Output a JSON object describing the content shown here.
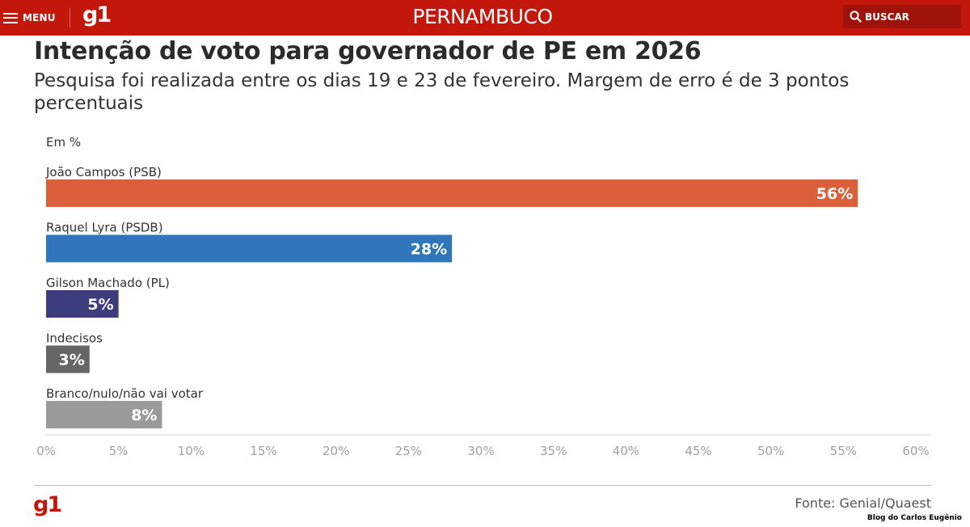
{
  "header": {
    "menu_label": "MENU",
    "logo": "g1",
    "region": "PERNAMBUCO",
    "search_label": "BUSCAR",
    "background_color": "#c4170c"
  },
  "chart_data": {
    "type": "bar",
    "orientation": "horizontal",
    "title": "Intenção de voto para governador de PE em 2026",
    "subtitle": "Pesquisa foi realizada entre os dias 19 e 23 de fevereiro. Margem de erro é de 3 pontos percentuais",
    "unit_label": "Em %",
    "categories": [
      "João Campos (PSB)",
      "Raquel Lyra (PSDB)",
      "Gilson Machado (PL)",
      "Indecisos",
      "Branco/nulo/não vai votar"
    ],
    "values": [
      56,
      28,
      5,
      3,
      8
    ],
    "value_labels": [
      "56%",
      "28%",
      "5%",
      "3%",
      "8%"
    ],
    "colors": [
      "#d9603b",
      "#2f76bb",
      "#3d3d7e",
      "#666666",
      "#9a9a9a"
    ],
    "xlim": [
      0,
      60
    ],
    "xticks": [
      "0%",
      "5%",
      "10%",
      "15%",
      "20%",
      "25%",
      "30%",
      "35%",
      "40%",
      "45%",
      "50%",
      "55%",
      "60%"
    ],
    "grid": false
  },
  "footer": {
    "logo": "g1",
    "source": "Fonte: Genial/Quaest",
    "credit": "Blog do Carlos Eugênio"
  }
}
